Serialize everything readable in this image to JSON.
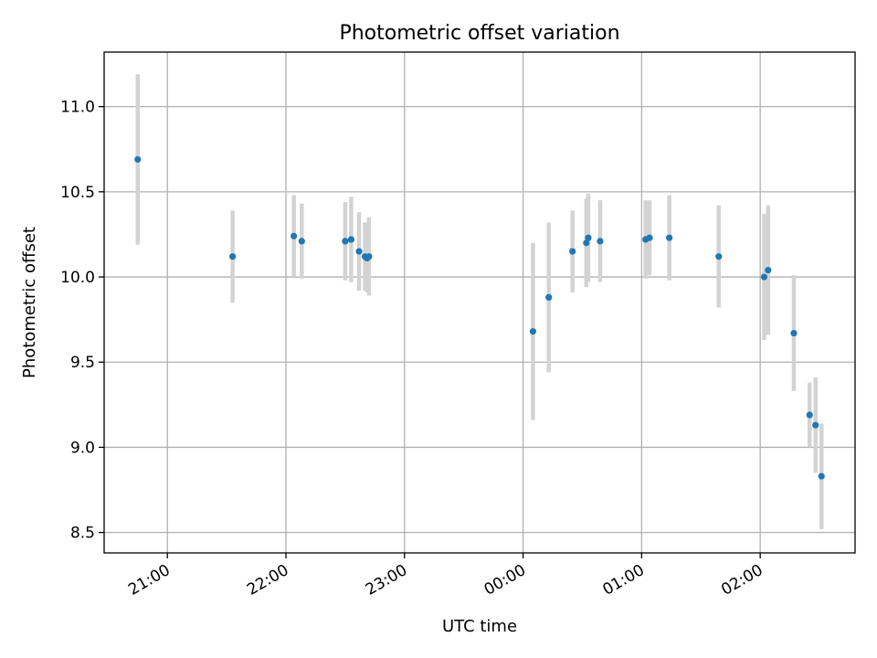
{
  "chart_data": {
    "type": "scatter",
    "title": "Photometric offset variation",
    "xlabel": "UTC time",
    "ylabel": "Photometric offset",
    "x_unit": "UTC",
    "xlim": [
      "20:28",
      "02:48"
    ],
    "ylim": [
      8.38,
      11.32
    ],
    "grid": true,
    "x_ticks": [
      "21:00",
      "22:00",
      "23:00",
      "00:00",
      "01:00",
      "02:00"
    ],
    "y_ticks": [
      "8.5",
      "9.0",
      "9.5",
      "10.0",
      "10.5",
      "11.0"
    ],
    "colors": {
      "point": "#1f77b4",
      "errorbar": "#d3d3d3",
      "grid": "#b0b0b0"
    },
    "points": [
      {
        "time": "20:45",
        "y": 10.69,
        "err": 0.5
      },
      {
        "time": "21:33",
        "y": 10.12,
        "err": 0.27
      },
      {
        "time": "22:04",
        "y": 10.24,
        "err": 0.24
      },
      {
        "time": "22:08",
        "y": 10.21,
        "err": 0.22
      },
      {
        "time": "22:30",
        "y": 10.21,
        "err": 0.23
      },
      {
        "time": "22:33",
        "y": 10.22,
        "err": 0.25
      },
      {
        "time": "22:37",
        "y": 10.15,
        "err": 0.23
      },
      {
        "time": "22:40",
        "y": 10.12,
        "err": 0.2
      },
      {
        "time": "22:41",
        "y": 10.11,
        "err": 0.2
      },
      {
        "time": "22:42",
        "y": 10.12,
        "err": 0.23
      },
      {
        "time": "00:05",
        "y": 9.68,
        "err": 0.52
      },
      {
        "time": "00:13",
        "y": 9.88,
        "err": 0.44
      },
      {
        "time": "00:25",
        "y": 10.15,
        "err": 0.24
      },
      {
        "time": "00:32",
        "y": 10.2,
        "err": 0.26
      },
      {
        "time": "00:33",
        "y": 10.23,
        "err": 0.26
      },
      {
        "time": "00:39",
        "y": 10.21,
        "err": 0.24
      },
      {
        "time": "01:02",
        "y": 10.22,
        "err": 0.23
      },
      {
        "time": "01:04",
        "y": 10.23,
        "err": 0.22
      },
      {
        "time": "01:14",
        "y": 10.23,
        "err": 0.25
      },
      {
        "time": "01:39",
        "y": 10.12,
        "err": 0.3
      },
      {
        "time": "02:02",
        "y": 10.0,
        "err": 0.37
      },
      {
        "time": "02:04",
        "y": 10.04,
        "err": 0.38
      },
      {
        "time": "02:17",
        "y": 9.67,
        "err": 0.34
      },
      {
        "time": "02:25",
        "y": 9.19,
        "err": 0.19
      },
      {
        "time": "02:28",
        "y": 9.13,
        "err": 0.28
      },
      {
        "time": "02:31",
        "y": 8.83,
        "err": 0.31
      }
    ]
  }
}
